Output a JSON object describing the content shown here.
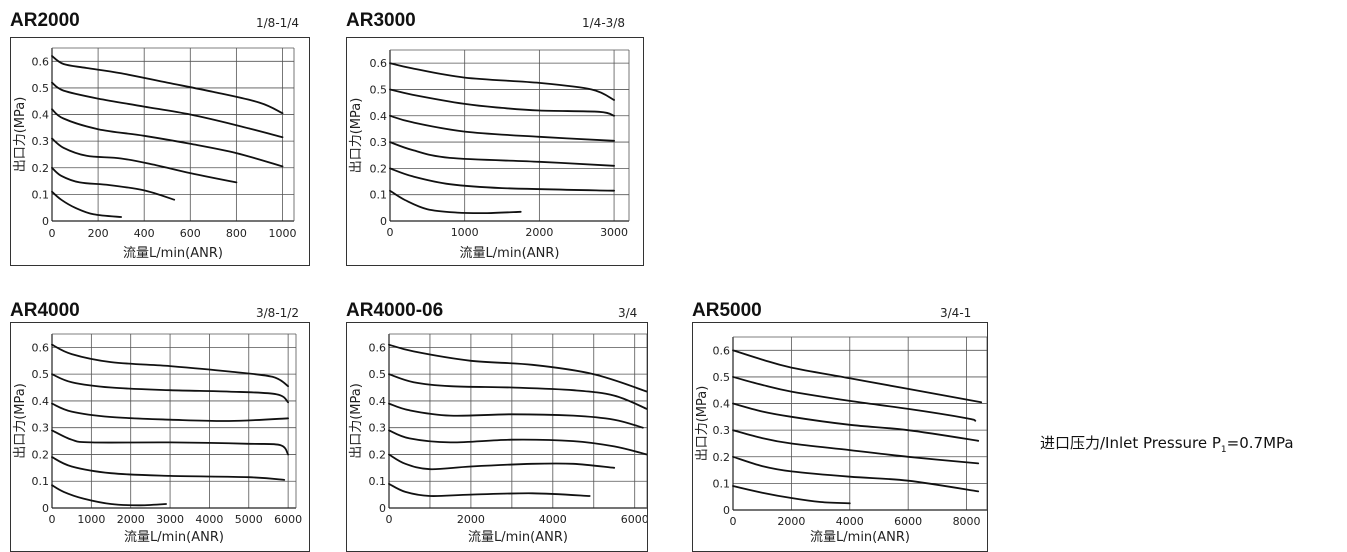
{
  "note": {
    "prefix": "进口压力/Inlet Pressure P",
    "sub": "1",
    "suffix": "=0.7MPa"
  },
  "chart_data": [
    {
      "id": "ar2000",
      "type": "line",
      "title": "AR2000",
      "subtitle": "1/8-1/4",
      "xlabel": "流量L/min(ANR)",
      "ylabel": "出口力(MPa)",
      "xlim": [
        0,
        1050
      ],
      "ylim": [
        0,
        0.65
      ],
      "xticks": [
        0,
        200,
        400,
        600,
        800,
        1000
      ],
      "yticks": [
        0,
        0.1,
        0.2,
        0.3,
        0.4,
        0.5,
        0.6
      ],
      "xgrid": [
        200,
        400,
        600,
        800,
        1000
      ],
      "series": [
        {
          "points": [
            [
              0,
              0.62
            ],
            [
              50,
              0.59
            ],
            [
              150,
              0.575
            ],
            [
              300,
              0.555
            ],
            [
              500,
              0.52
            ],
            [
              700,
              0.485
            ],
            [
              900,
              0.445
            ],
            [
              1000,
              0.405
            ]
          ]
        },
        {
          "points": [
            [
              0,
              0.52
            ],
            [
              50,
              0.49
            ],
            [
              200,
              0.46
            ],
            [
              400,
              0.43
            ],
            [
              600,
              0.4
            ],
            [
              800,
              0.36
            ],
            [
              1000,
              0.315
            ]
          ]
        },
        {
          "points": [
            [
              0,
              0.42
            ],
            [
              50,
              0.385
            ],
            [
              200,
              0.345
            ],
            [
              400,
              0.32
            ],
            [
              600,
              0.29
            ],
            [
              800,
              0.255
            ],
            [
              1000,
              0.205
            ]
          ]
        },
        {
          "points": [
            [
              0,
              0.31
            ],
            [
              50,
              0.275
            ],
            [
              150,
              0.245
            ],
            [
              300,
              0.235
            ],
            [
              450,
              0.21
            ],
            [
              600,
              0.18
            ],
            [
              800,
              0.145
            ]
          ]
        },
        {
          "points": [
            [
              0,
              0.2
            ],
            [
              40,
              0.17
            ],
            [
              120,
              0.145
            ],
            [
              250,
              0.135
            ],
            [
              400,
              0.115
            ],
            [
              530,
              0.08
            ]
          ]
        },
        {
          "points": [
            [
              0,
              0.11
            ],
            [
              40,
              0.08
            ],
            [
              100,
              0.05
            ],
            [
              180,
              0.025
            ],
            [
              300,
              0.015
            ]
          ]
        }
      ]
    },
    {
      "id": "ar3000",
      "type": "line",
      "title": "AR3000",
      "subtitle": "1/4-3/8",
      "xlabel": "流量L/min(ANR)",
      "ylabel": "出口力(MPa)",
      "xlim": [
        0,
        3200
      ],
      "ylim": [
        0,
        0.65
      ],
      "xticks": [
        0,
        1000,
        2000,
        3000
      ],
      "yticks": [
        0,
        0.1,
        0.2,
        0.3,
        0.4,
        0.5,
        0.6
      ],
      "xgrid": [
        1000,
        2000,
        3000
      ],
      "series": [
        {
          "points": [
            [
              0,
              0.6
            ],
            [
              300,
              0.58
            ],
            [
              1000,
              0.545
            ],
            [
              2000,
              0.525
            ],
            [
              2700,
              0.5
            ],
            [
              3000,
              0.46
            ]
          ]
        },
        {
          "points": [
            [
              0,
              0.5
            ],
            [
              300,
              0.48
            ],
            [
              1000,
              0.445
            ],
            [
              1500,
              0.43
            ],
            [
              2000,
              0.42
            ],
            [
              2800,
              0.415
            ],
            [
              3000,
              0.4
            ]
          ]
        },
        {
          "points": [
            [
              0,
              0.4
            ],
            [
              300,
              0.375
            ],
            [
              1000,
              0.34
            ],
            [
              2000,
              0.32
            ],
            [
              3000,
              0.305
            ]
          ]
        },
        {
          "points": [
            [
              0,
              0.3
            ],
            [
              300,
              0.27
            ],
            [
              800,
              0.24
            ],
            [
              2000,
              0.225
            ],
            [
              3000,
              0.21
            ]
          ]
        },
        {
          "points": [
            [
              0,
              0.2
            ],
            [
              300,
              0.17
            ],
            [
              800,
              0.14
            ],
            [
              1500,
              0.125
            ],
            [
              3000,
              0.115
            ]
          ]
        },
        {
          "points": [
            [
              0,
              0.115
            ],
            [
              200,
              0.08
            ],
            [
              500,
              0.045
            ],
            [
              900,
              0.032
            ],
            [
              1300,
              0.03
            ],
            [
              1750,
              0.035
            ]
          ]
        }
      ]
    },
    {
      "id": "ar4000",
      "type": "line",
      "title": "AR4000",
      "subtitle": "3/8-1/2",
      "xlabel": "流量L/min(ANR)",
      "ylabel": "出口力(MPa)",
      "xlim": [
        0,
        6200
      ],
      "ylim": [
        0,
        0.65
      ],
      "xticks": [
        0,
        1000,
        2000,
        3000,
        4000,
        5000,
        6000
      ],
      "yticks": [
        0,
        0.1,
        0.2,
        0.3,
        0.4,
        0.5,
        0.6
      ],
      "xgrid": [
        1000,
        2000,
        3000,
        4000,
        5000,
        6000
      ],
      "series": [
        {
          "points": [
            [
              0,
              0.61
            ],
            [
              500,
              0.575
            ],
            [
              1500,
              0.545
            ],
            [
              3000,
              0.53
            ],
            [
              4500,
              0.51
            ],
            [
              5600,
              0.49
            ],
            [
              6000,
              0.455
            ]
          ]
        },
        {
          "points": [
            [
              0,
              0.5
            ],
            [
              500,
              0.47
            ],
            [
              1500,
              0.45
            ],
            [
              3000,
              0.44
            ],
            [
              4500,
              0.435
            ],
            [
              5700,
              0.425
            ],
            [
              6000,
              0.395
            ]
          ]
        },
        {
          "points": [
            [
              0,
              0.39
            ],
            [
              500,
              0.36
            ],
            [
              1500,
              0.34
            ],
            [
              3000,
              0.33
            ],
            [
              4500,
              0.325
            ],
            [
              6000,
              0.335
            ]
          ]
        },
        {
          "points": [
            [
              0,
              0.29
            ],
            [
              500,
              0.255
            ],
            [
              1000,
              0.245
            ],
            [
              3000,
              0.245
            ],
            [
              5000,
              0.24
            ],
            [
              5800,
              0.235
            ],
            [
              6000,
              0.2
            ]
          ]
        },
        {
          "points": [
            [
              0,
              0.19
            ],
            [
              500,
              0.155
            ],
            [
              1500,
              0.13
            ],
            [
              3000,
              0.12
            ],
            [
              5000,
              0.115
            ],
            [
              5900,
              0.105
            ]
          ]
        },
        {
          "points": [
            [
              0,
              0.085
            ],
            [
              300,
              0.06
            ],
            [
              800,
              0.035
            ],
            [
              1500,
              0.015
            ],
            [
              2200,
              0.01
            ],
            [
              2900,
              0.015
            ]
          ]
        }
      ]
    },
    {
      "id": "ar4000-06",
      "type": "line",
      "title": "AR4000-06",
      "subtitle": "3/4",
      "xlabel": "流量L/min(ANR)",
      "ylabel": "出口力(MPa)",
      "xlim": [
        0,
        6300
      ],
      "ylim": [
        0,
        0.65
      ],
      "xticks": [
        0,
        2000,
        4000,
        6000
      ],
      "yticks": [
        0,
        0.1,
        0.2,
        0.3,
        0.4,
        0.5,
        0.6
      ],
      "xgrid": [
        1000,
        2000,
        3000,
        4000,
        5000,
        6000
      ],
      "series": [
        {
          "points": [
            [
              0,
              0.61
            ],
            [
              600,
              0.585
            ],
            [
              2000,
              0.55
            ],
            [
              3500,
              0.535
            ],
            [
              5000,
              0.5
            ],
            [
              6300,
              0.435
            ]
          ]
        },
        {
          "points": [
            [
              0,
              0.5
            ],
            [
              600,
              0.47
            ],
            [
              1500,
              0.455
            ],
            [
              3000,
              0.45
            ],
            [
              4500,
              0.44
            ],
            [
              5500,
              0.42
            ],
            [
              6300,
              0.37
            ]
          ]
        },
        {
          "points": [
            [
              0,
              0.39
            ],
            [
              500,
              0.365
            ],
            [
              1500,
              0.345
            ],
            [
              3000,
              0.35
            ],
            [
              4500,
              0.345
            ],
            [
              5500,
              0.33
            ],
            [
              6200,
              0.3
            ]
          ]
        },
        {
          "points": [
            [
              0,
              0.29
            ],
            [
              500,
              0.26
            ],
            [
              1500,
              0.245
            ],
            [
              3000,
              0.255
            ],
            [
              4500,
              0.25
            ],
            [
              5500,
              0.23
            ],
            [
              6300,
              0.2
            ]
          ]
        },
        {
          "points": [
            [
              0,
              0.2
            ],
            [
              400,
              0.165
            ],
            [
              1000,
              0.145
            ],
            [
              2000,
              0.155
            ],
            [
              3500,
              0.165
            ],
            [
              4500,
              0.165
            ],
            [
              5500,
              0.15
            ]
          ]
        },
        {
          "points": [
            [
              0,
              0.09
            ],
            [
              400,
              0.06
            ],
            [
              1000,
              0.045
            ],
            [
              2000,
              0.05
            ],
            [
              3500,
              0.055
            ],
            [
              4900,
              0.045
            ]
          ]
        }
      ]
    },
    {
      "id": "ar5000",
      "type": "line",
      "title": "AR5000",
      "subtitle": "3/4-1",
      "xlabel": "流量L/min(ANR)",
      "ylabel": "出口力(MPa)",
      "xlim": [
        0,
        8700
      ],
      "ylim": [
        0,
        0.65
      ],
      "xticks": [
        0,
        2000,
        4000,
        6000,
        8000
      ],
      "yticks": [
        0,
        0.1,
        0.2,
        0.3,
        0.4,
        0.5,
        0.6
      ],
      "xgrid": [
        2000,
        4000,
        6000,
        8000
      ],
      "series": [
        {
          "points": [
            [
              0,
              0.6
            ],
            [
              1000,
              0.565
            ],
            [
              2000,
              0.535
            ],
            [
              4000,
              0.495
            ],
            [
              6000,
              0.455
            ],
            [
              8500,
              0.405
            ]
          ]
        },
        {
          "points": [
            [
              0,
              0.5
            ],
            [
              1000,
              0.47
            ],
            [
              2000,
              0.445
            ],
            [
              4000,
              0.41
            ],
            [
              6000,
              0.38
            ],
            [
              8000,
              0.345
            ],
            [
              8300,
              0.335
            ]
          ]
        },
        {
          "points": [
            [
              0,
              0.4
            ],
            [
              1000,
              0.37
            ],
            [
              2000,
              0.35
            ],
            [
              4000,
              0.32
            ],
            [
              6000,
              0.3
            ],
            [
              8400,
              0.26
            ]
          ]
        },
        {
          "points": [
            [
              0,
              0.3
            ],
            [
              1000,
              0.27
            ],
            [
              2000,
              0.25
            ],
            [
              4000,
              0.225
            ],
            [
              6000,
              0.2
            ],
            [
              8400,
              0.175
            ]
          ]
        },
        {
          "points": [
            [
              0,
              0.2
            ],
            [
              1000,
              0.165
            ],
            [
              2000,
              0.145
            ],
            [
              4000,
              0.125
            ],
            [
              6000,
              0.11
            ],
            [
              8400,
              0.07
            ]
          ]
        },
        {
          "points": [
            [
              0,
              0.09
            ],
            [
              1000,
              0.065
            ],
            [
              2000,
              0.045
            ],
            [
              3000,
              0.03
            ],
            [
              4000,
              0.025
            ]
          ]
        }
      ]
    }
  ]
}
